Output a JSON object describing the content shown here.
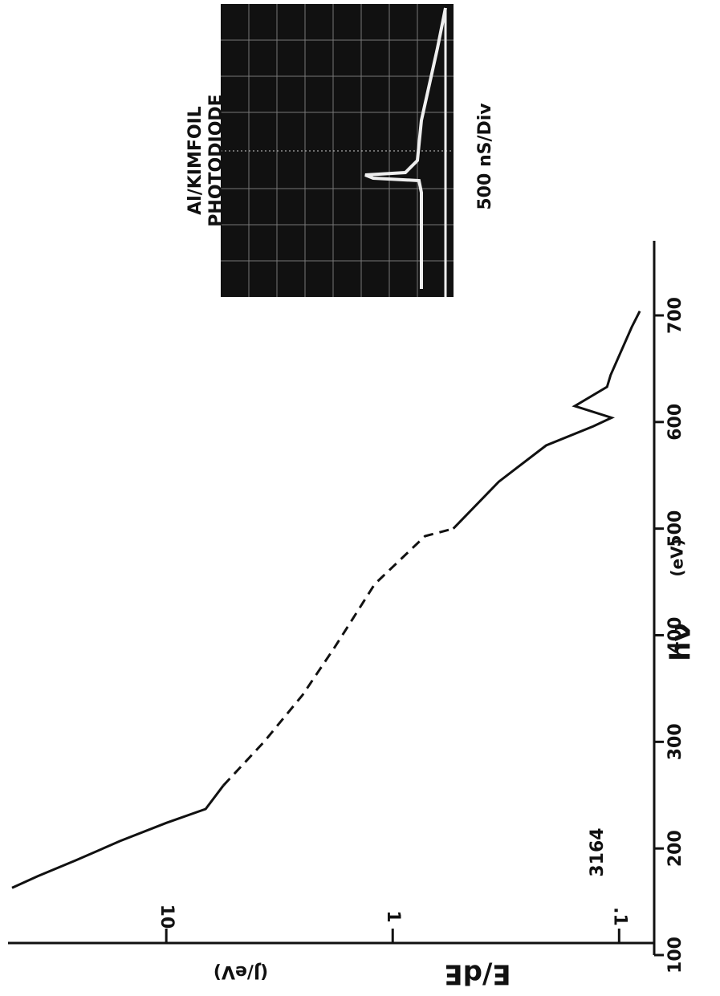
{
  "chart_data": {
    "type": "line",
    "ylabel": "E/dE",
    "yunit": "(J/eV)",
    "xlabel": "hν",
    "xunit": "(eV)",
    "annotation": "3164",
    "inset_title": [
      "Al/KIMFOIL",
      "PHOTODIODE"
    ],
    "inset_caption": "500 nS/Div",
    "xlim": [
      100,
      770
    ],
    "xticks": [
      100,
      200,
      300,
      400,
      500,
      600,
      700
    ],
    "ylim": [
      0.07,
      50
    ],
    "log_y": true,
    "yticks": [
      {
        "value": 0.1,
        "label": ".1"
      },
      1,
      10
    ],
    "color": "#111",
    "series": [
      {
        "style": "solid",
        "x": [
          163,
          174,
          189,
          207,
          224,
          237,
          259
        ],
        "values": [
          48,
          37,
          25,
          16,
          10,
          6.7,
          5.6
        ]
      },
      {
        "style": "dashed",
        "x": [
          259,
          300,
          344,
          389,
          448,
          493,
          500
        ],
        "values": [
          5.6,
          3.7,
          2.5,
          1.8,
          1.2,
          0.72,
          0.54
        ]
      },
      {
        "style": "solid",
        "x": [
          500,
          544,
          578,
          596,
          604,
          615,
          633,
          644,
          689,
          704
        ],
        "values": [
          0.54,
          0.34,
          0.21,
          0.13,
          0.108,
          0.157,
          0.113,
          0.109,
          0.088,
          0.081
        ]
      }
    ]
  }
}
